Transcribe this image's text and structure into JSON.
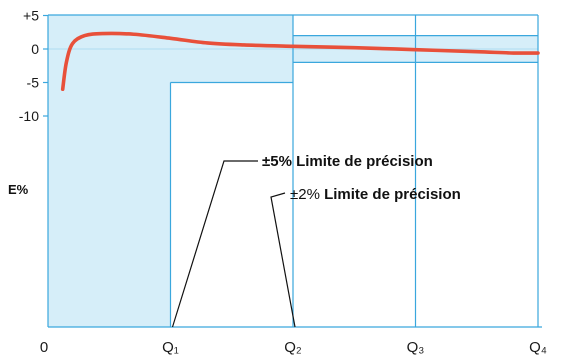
{
  "chart_data": {
    "type": "line",
    "title": "",
    "ylabel": "E%",
    "xlabel": "",
    "x_tick_labels": [
      "0",
      "Q₁",
      "Q₂",
      "Q₃",
      "Q₄"
    ],
    "x_tick_positions": [
      0,
      1,
      2,
      3,
      4
    ],
    "y_tick_labels": [
      "+5",
      "0",
      "-5",
      "-10"
    ],
    "y_tick_values": [
      5,
      0,
      -5,
      -10
    ],
    "xlim": [
      0,
      4.05
    ],
    "ylim": [
      -10,
      5
    ],
    "grid": false,
    "series": [
      {
        "color": "#e8503a",
        "x": [
          0.12,
          0.15,
          0.2,
          0.3,
          0.45,
          0.7,
          1.0,
          1.3,
          1.6,
          2.0,
          2.5,
          3.0,
          3.5,
          3.8,
          4.0
        ],
        "y": [
          -6.0,
          -2.0,
          0.8,
          2.0,
          2.3,
          2.2,
          1.6,
          0.9,
          0.6,
          0.4,
          0.2,
          -0.1,
          -0.4,
          -0.6,
          -0.6
        ]
      }
    ],
    "bands": [
      {
        "label": "±5% Limite de précision",
        "lower": -5,
        "upper": 5,
        "x_from": 0,
        "x_to": 2,
        "low_flow_x_to": 1,
        "color": "#d6eef9"
      },
      {
        "label": "±2% Limite de précision",
        "lower": -2,
        "upper": 2,
        "x_from": 2,
        "x_to": 4,
        "color": "#d6eef9"
      }
    ],
    "annotations": [
      {
        "text_value": "±5%",
        "text_label": " Limite de précision"
      },
      {
        "text_value": "±2%",
        "text_label": " Limite de précision"
      }
    ],
    "colors": {
      "band_fill": "#d6eef9",
      "band_edge": "#3aa7dd",
      "curve": "#e8503a",
      "axis": "#3aa7dd"
    }
  }
}
